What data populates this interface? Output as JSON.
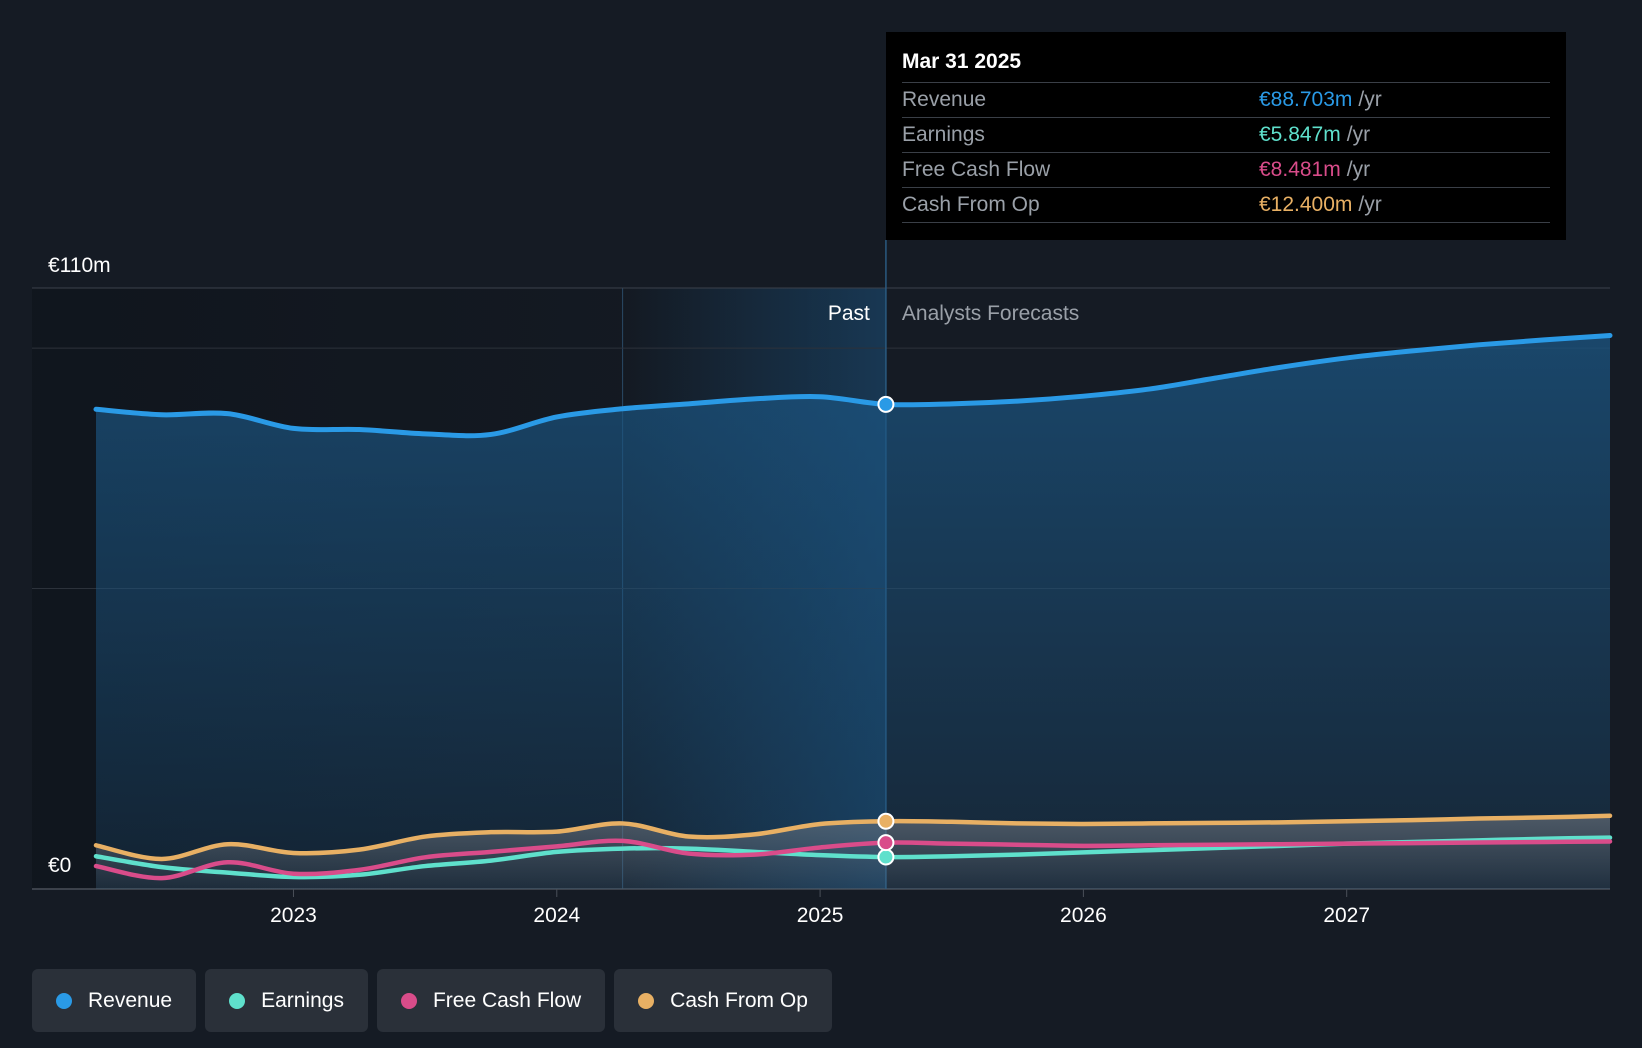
{
  "tooltip": {
    "date": "Mar 31 2025",
    "rows": [
      {
        "label": "Revenue",
        "value": "€88.703m",
        "unit": "/yr",
        "color": "#2a9ae6"
      },
      {
        "label": "Earnings",
        "value": "€5.847m",
        "unit": "/yr",
        "color": "#5fe0cc"
      },
      {
        "label": "Free Cash Flow",
        "value": "€8.481m",
        "unit": "/yr",
        "color": "#d94c8a"
      },
      {
        "label": "Cash From Op",
        "value": "€12.400m",
        "unit": "/yr",
        "color": "#e8b064"
      }
    ]
  },
  "legend": [
    {
      "label": "Revenue",
      "color": "#2a9ae6"
    },
    {
      "label": "Earnings",
      "color": "#5fe0cc"
    },
    {
      "label": "Free Cash Flow",
      "color": "#d94c8a"
    },
    {
      "label": "Cash From Op",
      "color": "#e8b064"
    }
  ],
  "chart_data": {
    "type": "line",
    "ylabel_top": "€110m",
    "ylabel_bottom": "€0",
    "ylim": [
      0,
      110
    ],
    "xlim": [
      2022.25,
      2028.0
    ],
    "divider_x": 2025.25,
    "past_label": "Past",
    "forecast_label": "Analysts Forecasts",
    "x_ticks": [
      {
        "x": 2023,
        "label": "2023"
      },
      {
        "x": 2024,
        "label": "2024"
      },
      {
        "x": 2025,
        "label": "2025"
      },
      {
        "x": 2026,
        "label": "2026"
      },
      {
        "x": 2027,
        "label": "2027"
      }
    ],
    "series": [
      {
        "name": "Revenue",
        "color": "#2a9ae6",
        "points": [
          [
            2022.25,
            87.8
          ],
          [
            2022.5,
            86.8
          ],
          [
            2022.75,
            87.0
          ],
          [
            2023.0,
            84.3
          ],
          [
            2023.25,
            84.1
          ],
          [
            2023.5,
            83.3
          ],
          [
            2023.75,
            83.2
          ],
          [
            2024.0,
            86.4
          ],
          [
            2024.25,
            87.9
          ],
          [
            2024.5,
            88.8
          ],
          [
            2024.75,
            89.7
          ],
          [
            2025.0,
            90.1
          ],
          [
            2025.25,
            88.7
          ],
          [
            2025.5,
            88.8
          ],
          [
            2025.75,
            89.3
          ],
          [
            2026.0,
            90.2
          ],
          [
            2026.25,
            91.5
          ],
          [
            2026.5,
            93.5
          ],
          [
            2026.75,
            95.5
          ],
          [
            2027.0,
            97.2
          ],
          [
            2027.25,
            98.5
          ],
          [
            2027.5,
            99.6
          ],
          [
            2027.75,
            100.5
          ],
          [
            2028.0,
            101.3
          ]
        ]
      },
      {
        "name": "Earnings",
        "color": "#5fe0cc",
        "points": [
          [
            2022.25,
            6.0
          ],
          [
            2022.5,
            4.0
          ],
          [
            2022.75,
            3.0
          ],
          [
            2023.0,
            2.2
          ],
          [
            2023.25,
            2.6
          ],
          [
            2023.5,
            4.2
          ],
          [
            2023.75,
            5.2
          ],
          [
            2024.0,
            6.8
          ],
          [
            2024.25,
            7.4
          ],
          [
            2024.5,
            7.4
          ],
          [
            2024.75,
            6.8
          ],
          [
            2025.0,
            6.2
          ],
          [
            2025.25,
            5.85
          ],
          [
            2025.5,
            6.0
          ],
          [
            2025.75,
            6.3
          ],
          [
            2026.0,
            6.7
          ],
          [
            2026.25,
            7.1
          ],
          [
            2026.5,
            7.5
          ],
          [
            2026.75,
            7.9
          ],
          [
            2027.0,
            8.3
          ],
          [
            2027.25,
            8.6
          ],
          [
            2027.5,
            8.9
          ],
          [
            2027.75,
            9.2
          ],
          [
            2028.0,
            9.4
          ]
        ]
      },
      {
        "name": "Free Cash Flow",
        "color": "#d94c8a",
        "points": [
          [
            2022.25,
            4.2
          ],
          [
            2022.5,
            2.0
          ],
          [
            2022.75,
            4.9
          ],
          [
            2023.0,
            2.8
          ],
          [
            2023.25,
            3.5
          ],
          [
            2023.5,
            5.8
          ],
          [
            2023.75,
            6.8
          ],
          [
            2024.0,
            7.8
          ],
          [
            2024.25,
            8.8
          ],
          [
            2024.5,
            6.5
          ],
          [
            2024.75,
            6.3
          ],
          [
            2025.0,
            7.6
          ],
          [
            2025.25,
            8.48
          ],
          [
            2025.5,
            8.3
          ],
          [
            2025.75,
            8.1
          ],
          [
            2026.0,
            7.9
          ],
          [
            2026.25,
            8.0
          ],
          [
            2026.5,
            8.1
          ],
          [
            2026.75,
            8.2
          ],
          [
            2027.0,
            8.3
          ],
          [
            2027.25,
            8.4
          ],
          [
            2027.5,
            8.5
          ],
          [
            2027.75,
            8.6
          ],
          [
            2028.0,
            8.7
          ]
        ]
      },
      {
        "name": "Cash From Op",
        "color": "#e8b064",
        "points": [
          [
            2022.25,
            8.0
          ],
          [
            2022.5,
            5.5
          ],
          [
            2022.75,
            8.2
          ],
          [
            2023.0,
            6.6
          ],
          [
            2023.25,
            7.2
          ],
          [
            2023.5,
            9.6
          ],
          [
            2023.75,
            10.4
          ],
          [
            2024.0,
            10.5
          ],
          [
            2024.25,
            12.0
          ],
          [
            2024.5,
            9.6
          ],
          [
            2024.75,
            10.0
          ],
          [
            2025.0,
            11.9
          ],
          [
            2025.25,
            12.4
          ],
          [
            2025.5,
            12.3
          ],
          [
            2025.75,
            12.0
          ],
          [
            2026.0,
            11.9
          ],
          [
            2026.25,
            12.0
          ],
          [
            2026.5,
            12.1
          ],
          [
            2026.75,
            12.2
          ],
          [
            2027.0,
            12.4
          ],
          [
            2027.25,
            12.6
          ],
          [
            2027.5,
            12.9
          ],
          [
            2027.75,
            13.1
          ],
          [
            2028.0,
            13.4
          ]
        ]
      }
    ]
  }
}
